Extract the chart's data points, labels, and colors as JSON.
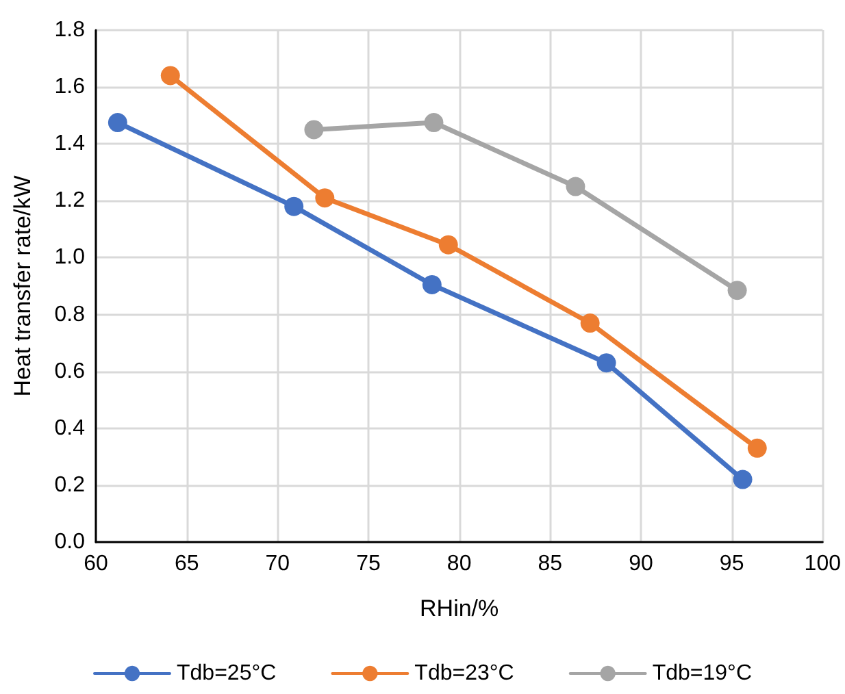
{
  "chart_data": {
    "type": "line",
    "xlabel": "RHin/%",
    "ylabel": "Heat transfer rate/kW",
    "xlim": [
      60,
      100
    ],
    "xticks": [
      60,
      65,
      70,
      75,
      80,
      85,
      90,
      95,
      100
    ],
    "ylim": [
      0,
      1.8
    ],
    "yticks": [
      {
        "value": 0,
        "label": "0.0"
      },
      {
        "value": 0.2,
        "label": "0.2"
      },
      {
        "value": 0.4,
        "label": "0.4"
      },
      {
        "value": 0.6,
        "label": "0.6"
      },
      {
        "value": 0.8,
        "label": "0.8"
      },
      {
        "value": 1,
        "label": "1.0"
      },
      {
        "value": 1.2,
        "label": "1.2"
      },
      {
        "value": 1.4,
        "label": "1.4"
      },
      {
        "value": 1.6,
        "label": "1.6"
      },
      {
        "value": 1.8,
        "label": "1.8"
      }
    ],
    "grid": true,
    "legend": "bottom",
    "marker": "circle",
    "line_style": "solid",
    "series": [
      {
        "name": "Tdb=25°C",
        "color": "#4472c4",
        "x": [
          61.2,
          70.9,
          78.5,
          88.1,
          95.6
        ],
        "values": [
          1.475,
          1.18,
          0.905,
          0.63,
          0.22
        ]
      },
      {
        "name": "Tdb=23°C",
        "color": "#ed7d31",
        "x": [
          64.1,
          72.6,
          79.4,
          87.2,
          96.4
        ],
        "values": [
          1.64,
          1.21,
          1.045,
          0.77,
          0.33
        ]
      },
      {
        "name": "Tdb=19°C",
        "color": "#a5a5a5",
        "x": [
          72.0,
          78.6,
          86.4,
          95.3
        ],
        "values": [
          1.45,
          1.475,
          1.25,
          0.885
        ]
      }
    ]
  }
}
